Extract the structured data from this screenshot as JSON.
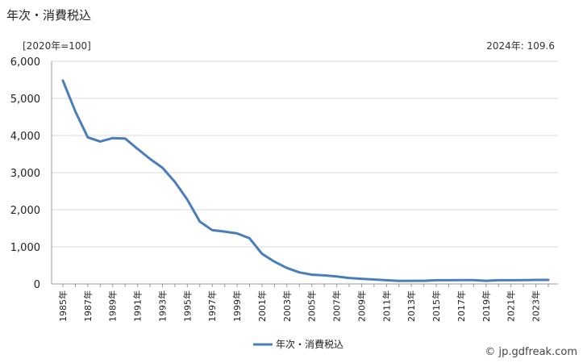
{
  "header": {
    "title": "年次・消費税込",
    "unit": "[2020年=100]",
    "latest": "2024年: 109.6"
  },
  "footer": {
    "credit": "© jp.gdfreak.com"
  },
  "colors": {
    "series": "#4a7ebb",
    "grid": "#d9d9d9",
    "axis": "#999999"
  },
  "chart_data": {
    "type": "line",
    "x": [
      1985,
      1986,
      1987,
      1988,
      1989,
      1990,
      1991,
      1992,
      1993,
      1994,
      1995,
      1996,
      1997,
      1998,
      1999,
      2000,
      2001,
      2002,
      2003,
      2004,
      2005,
      2006,
      2007,
      2008,
      2009,
      2010,
      2011,
      2012,
      2013,
      2014,
      2015,
      2016,
      2017,
      2018,
      2019,
      2020,
      2021,
      2022,
      2023,
      2024
    ],
    "x_tick_labels": [
      "1985年",
      "1987年",
      "1989年",
      "1991年",
      "1993年",
      "1995年",
      "1997年",
      "1999年",
      "2001年",
      "2003年",
      "2005年",
      "2007年",
      "2009年",
      "2011年",
      "2013年",
      "2015年",
      "2017年",
      "2019年",
      "2021年",
      "2023年"
    ],
    "y_tick_labels": [
      "0",
      "1,000",
      "2,000",
      "3,000",
      "4,000",
      "5,000",
      "6,000"
    ],
    "ylim": [
      0,
      6000
    ],
    "grid": true,
    "legend_position": "bottom",
    "series": [
      {
        "name": "年次・消費税込",
        "values": [
          5480,
          4650,
          3950,
          3840,
          3930,
          3920,
          3640,
          3370,
          3130,
          2750,
          2270,
          1680,
          1450,
          1410,
          1360,
          1230,
          810,
          600,
          430,
          310,
          250,
          230,
          200,
          160,
          140,
          120,
          100,
          80,
          85,
          85,
          100,
          100,
          105,
          105,
          85,
          100,
          100,
          105,
          108,
          109.6
        ]
      }
    ]
  }
}
